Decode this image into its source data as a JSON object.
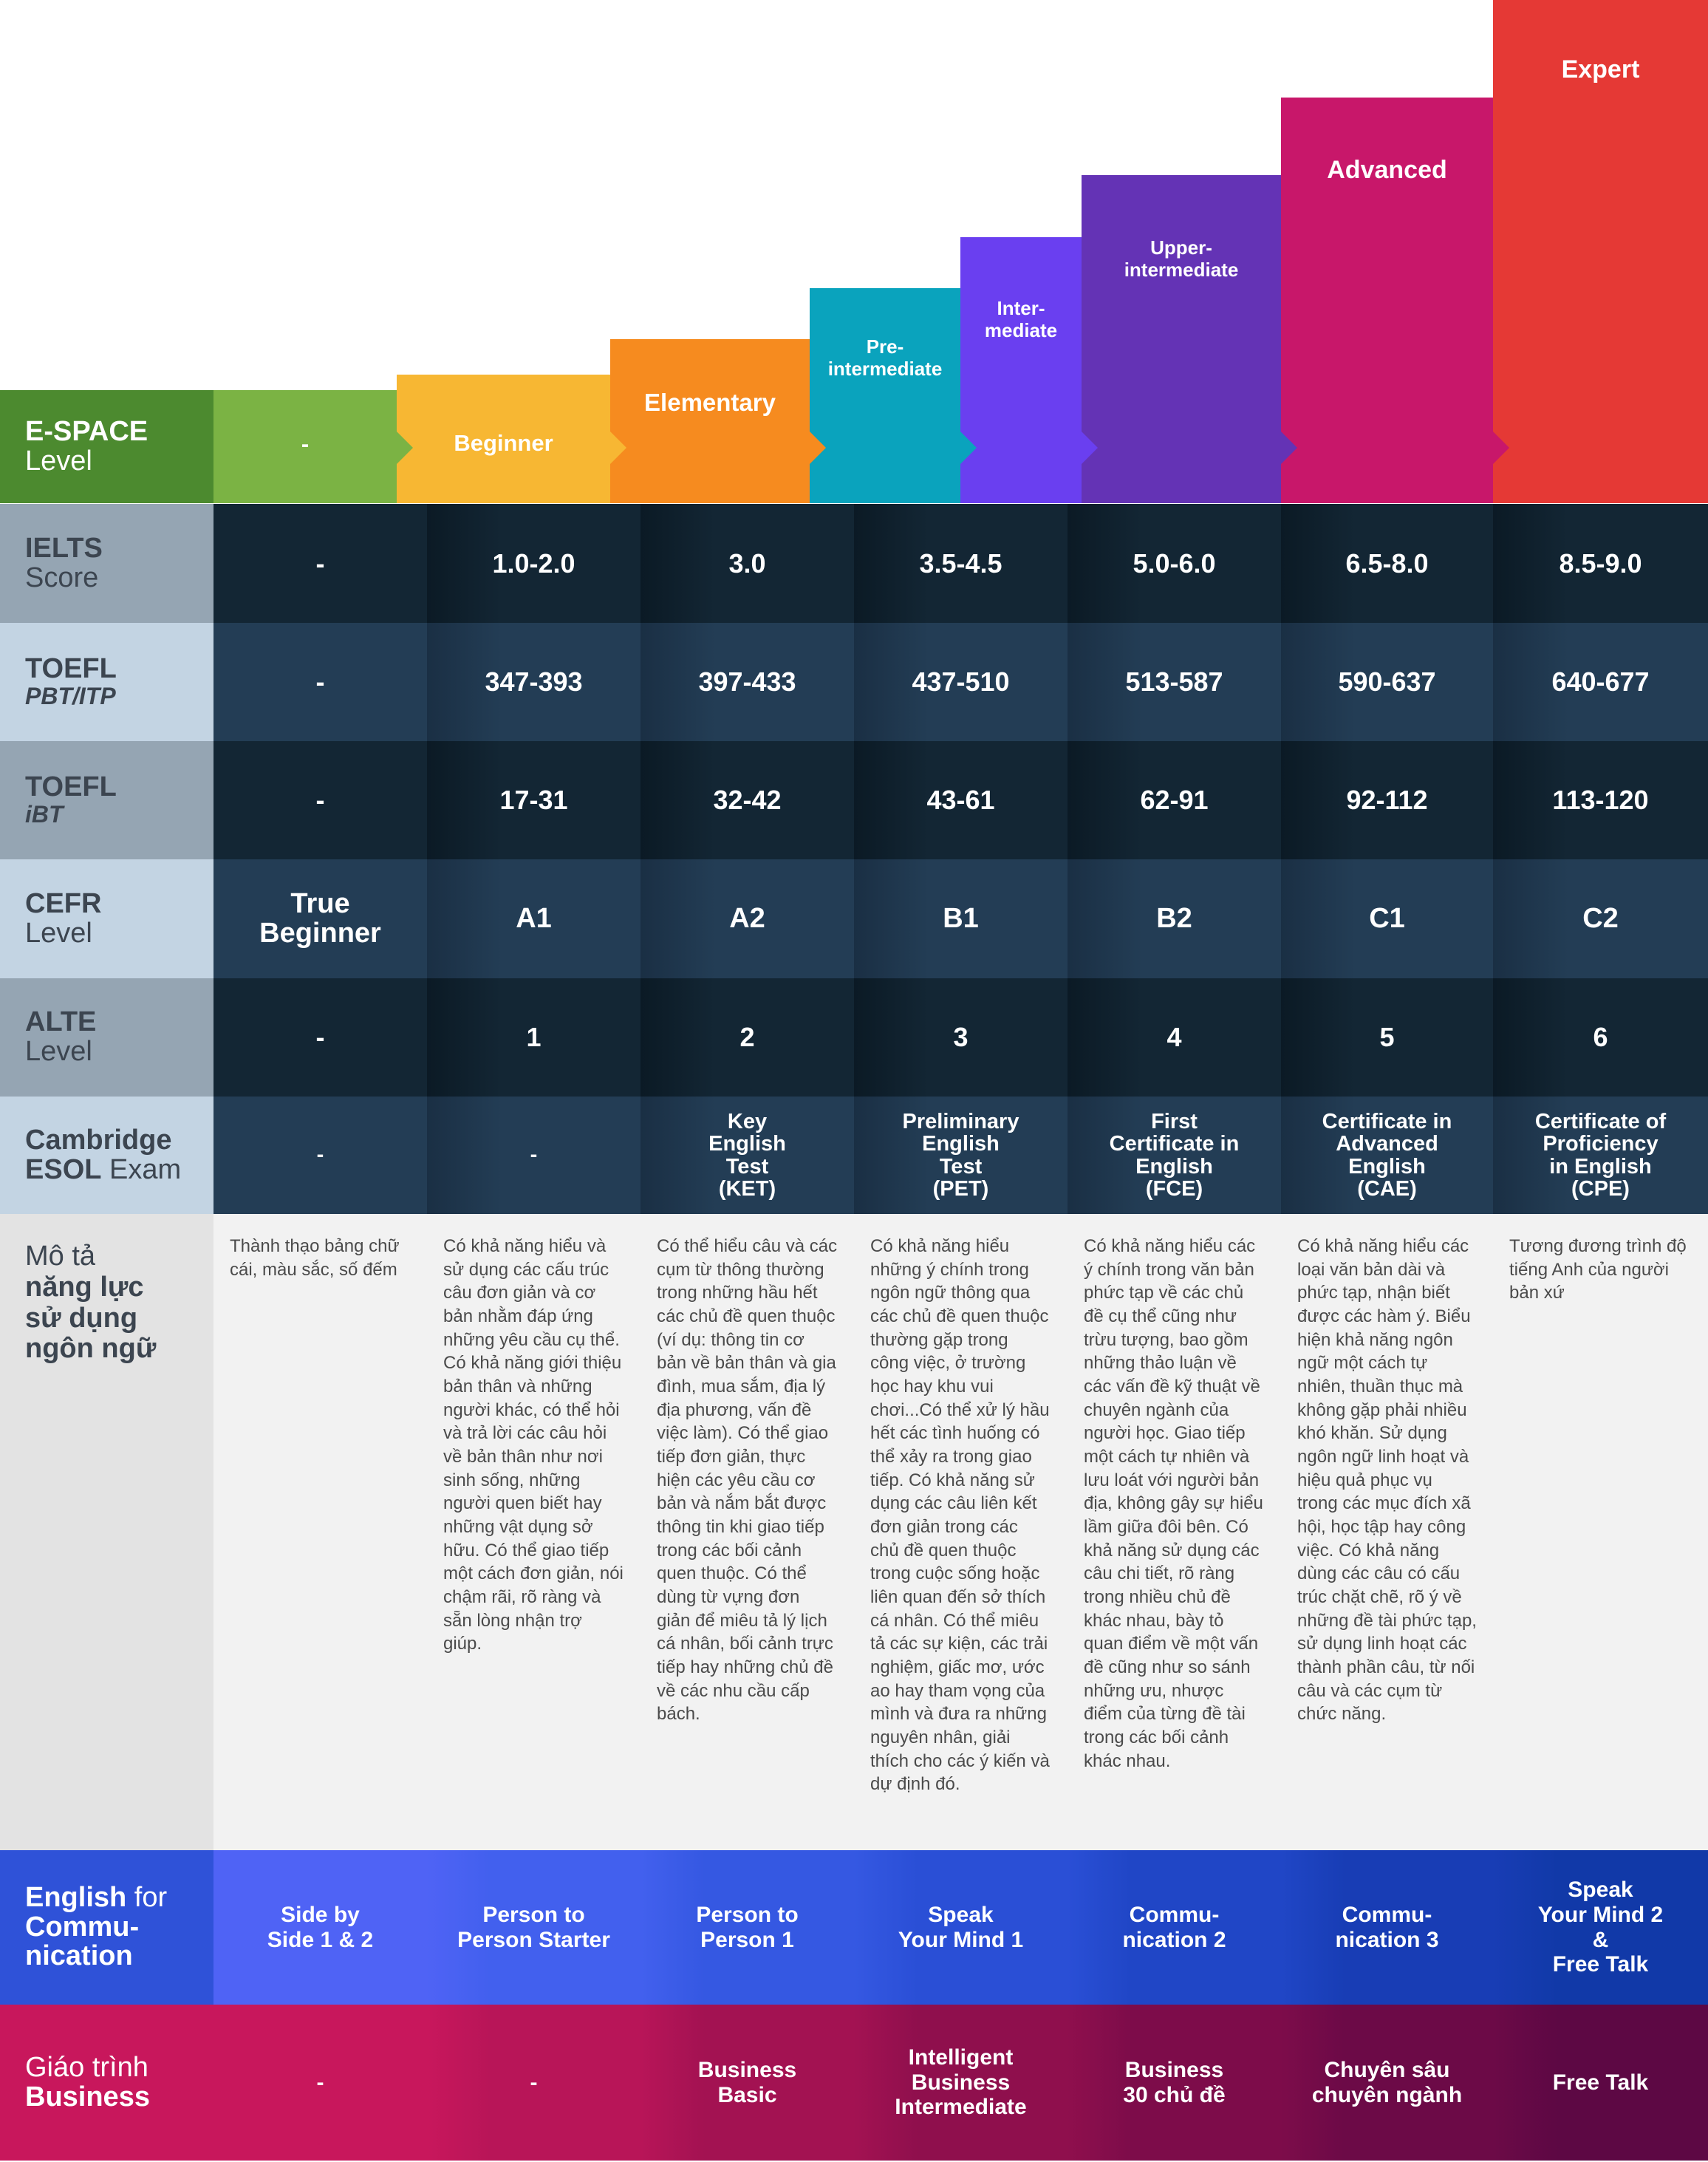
{
  "levels": [
    {
      "name": "-",
      "color": "#7bb344"
    },
    {
      "name": "Beginner",
      "color": "#f7b733"
    },
    {
      "name": "Elementary",
      "color": "#f68b1f"
    },
    {
      "name": "Pre-\nintermediate",
      "color": "#0aa3bd"
    },
    {
      "name": "Inter-\nmediate",
      "color": "#6a3ff0"
    },
    {
      "name": "Upper-\nintermediate",
      "color": "#6433b5"
    },
    {
      "name": "Advanced",
      "color": "#c8176a"
    },
    {
      "name": "Expert",
      "color": "#e53935"
    }
  ],
  "row_labels": {
    "espace": {
      "l1": "E-SPACE",
      "l2": "Level"
    },
    "ielts": {
      "l1": "IELTS",
      "l2": "Score"
    },
    "toefl_pbt": {
      "l1": "TOEFL",
      "l2": "PBT/ITP"
    },
    "toefl_ibt": {
      "l1": "TOEFL",
      "l2": "iBT"
    },
    "cefr": {
      "l1": "CEFR",
      "l2": "Level"
    },
    "alte": {
      "l1": "ALTE",
      "l2": "Level"
    },
    "cambridge": {
      "l1": "Cambridge",
      "l2a": "ESOL",
      "l2b": " Exam"
    },
    "desc": {
      "l1": "Mô tả",
      "l2": "năng lực",
      "l3": "sử dụng",
      "l4": "ngôn ngữ"
    },
    "efc": {
      "l1a": "English",
      "l1b": " for",
      "l2": "Commu-",
      "l3": "nication"
    },
    "business": {
      "l1": "Giáo trình",
      "l2": "Business"
    }
  },
  "ielts": [
    "-",
    "1.0-2.0",
    "3.0",
    "3.5-4.5",
    "5.0-6.0",
    "6.5-8.0",
    "8.5-9.0"
  ],
  "toefl_pbt": [
    "-",
    "347-393",
    "397-433",
    "437-510",
    "513-587",
    "590-637",
    "640-677"
  ],
  "toefl_ibt": [
    "-",
    "17-31",
    "32-42",
    "43-61",
    "62-91",
    "92-112",
    "113-120"
  ],
  "cefr": [
    "True\nBeginner",
    "A1",
    "A2",
    "B1",
    "B2",
    "C1",
    "C2"
  ],
  "alte": [
    "-",
    "1",
    "2",
    "3",
    "4",
    "5",
    "6"
  ],
  "cambridge": [
    "-",
    "-",
    "Key\nEnglish\nTest\n(KET)",
    "Preliminary\nEnglish\nTest\n(PET)",
    "First\nCertificate in\nEnglish\n(FCE)",
    "Certificate in\nAdvanced\nEnglish\n(CAE)",
    "Certificate of\nProficiency\nin English\n(CPE)"
  ],
  "descriptions": [
    "Thành thạo  bảng chữ cái, màu sắc, số đếm",
    "Có khả năng hiểu và sử dụng các cấu trúc câu đơn giản và cơ bản nhằm đáp ứng những yêu cầu cụ thể. Có khả năng giới thiệu bản thân và những người khác, có thể hỏi và trả lời các câu hỏi về bản thân như nơi sinh sống, những người quen biết hay những vật dụng sở hữu. Có thể giao tiếp một cách đơn giản, nói chậm rãi, rõ ràng và sẵn lòng nhận trợ giúp.",
    "Có thể hiểu câu và các cụm từ thông thường trong những hầu hết các chủ đề quen thuộc (ví dụ: thông tin cơ bản về bản thân và gia đình, mua sắm, địa lý địa phương, vấn đề việc làm). Có thể giao tiếp đơn giản, thực hiện các yêu cầu cơ bản và nắm bắt được thông tin khi giao tiếp trong các bối cảnh quen thuộc. Có thể dùng từ vựng đơn giản để miêu tả lý lịch cá nhân, bối cảnh trực tiếp hay những chủ đề về các nhu cầu cấp bách.",
    "Có khả năng hiểu những ý chính trong ngôn ngữ thông qua các chủ đề quen thuộc thường gặp trong công việc, ở trường học hay khu vui chơi...Có thể xử lý hầu hết các tình huống có thể xảy ra trong giao tiếp. Có khả năng sử dụng các câu liên kết đơn giản trong các chủ đề quen thuộc trong cuộc sống hoặc liên quan đến sở thích cá nhân. Có thể miêu tả các sự kiện, các trải nghiệm, giấc mơ, ước ao hay tham vọng của mình và đưa ra những nguyên nhân, giải thích cho các ý kiến và dự định đó.",
    "Có khả năng hiểu các ý chính trong văn bản phức tạp về các chủ đề cụ thể cũng như trừu tượng, bao gồm những thảo luận về các vấn đề kỹ thuật về chuyên ngành của người học. Giao tiếp một cách tự nhiên và lưu loát với người bản địa, không gây sự hiểu lầm giữa đôi bên. Có khả năng sử dụng các câu chi tiết, rõ ràng trong nhiều chủ đề khác nhau, bày tỏ quan điểm về một vấn đề cũng như so sánh những ưu, nhược điểm của từng đề tài trong các bối cảnh khác nhau.",
    "Có khả năng hiểu các loại văn bản dài và phức tạp, nhận biết được các hàm ý. Biểu hiện khả năng ngôn ngữ một cách tự nhiên, thuần thục mà không gặp phải nhiều khó khăn. Sử dụng ngôn ngữ linh hoạt và hiệu quả phục vụ trong các mục đích xã hội, học tập hay công việc. Có khả năng dùng các câu có cấu trúc chặt chẽ, rõ ý về những đề tài phức tạp, sử dụng linh hoạt các thành phần câu, từ nối câu và các cụm từ chức năng.",
    "Tương đương trình độ tiếng Anh của người bản xứ"
  ],
  "efc": [
    "Side by\nSide 1 & 2",
    "Person to\nPerson Starter",
    "Person to\nPerson 1",
    "Speak\nYour Mind 1",
    "Commu-\nnication 2",
    "Commu-\nnication 3",
    "Speak\nYour Mind 2\n&\nFree Talk"
  ],
  "business": [
    "-",
    "-",
    "Business\nBasic",
    "Intelligent\nBusiness\nIntermediate",
    "Business\n30 chủ đề",
    "Chuyên sâu\nchuyên ngành",
    "Free Talk"
  ],
  "colors": {
    "espace_label_bg": "#4c8a2f",
    "label_dark": "#95a5b3",
    "label_light": "#c3d4e3",
    "row_dark": "#132634",
    "row_light": "#233d55",
    "desc_label_bg": "#e3e3e3",
    "desc_bg": "#f2f2f2",
    "efc_label_bg": "#2f52d8",
    "business_label_bg": "#c8175c"
  }
}
